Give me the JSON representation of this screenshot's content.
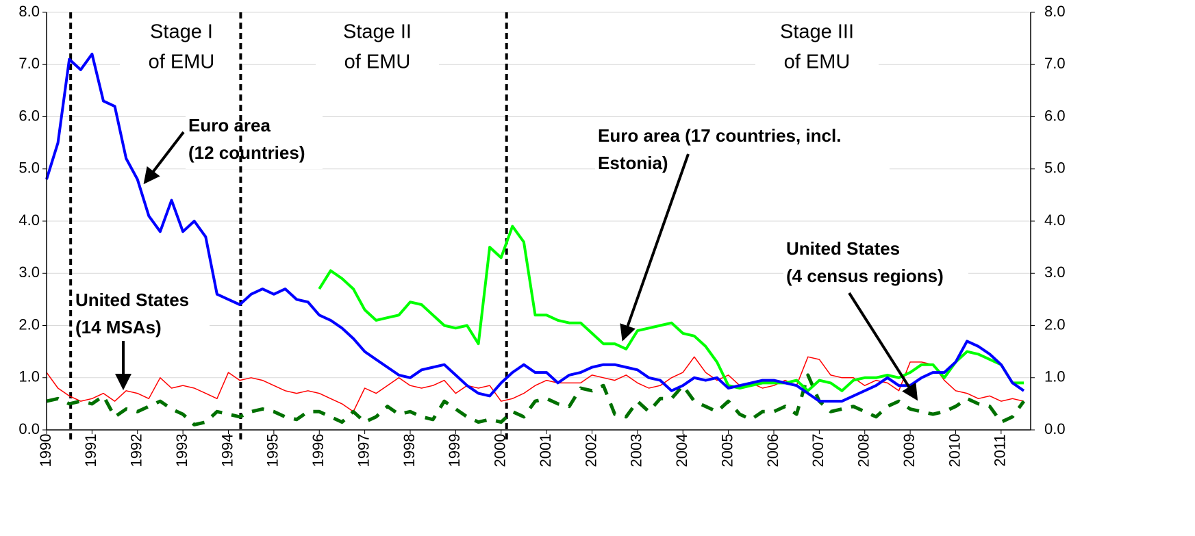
{
  "chart_data": {
    "type": "line",
    "x": [
      1990,
      1990.25,
      1990.5,
      1990.75,
      1991,
      1991.25,
      1991.5,
      1991.75,
      1992,
      1992.25,
      1992.5,
      1992.75,
      1993,
      1993.25,
      1993.5,
      1993.75,
      1994,
      1994.25,
      1994.5,
      1994.75,
      1995,
      1995.25,
      1995.5,
      1995.75,
      1996,
      1996.25,
      1996.5,
      1996.75,
      1997,
      1997.25,
      1997.5,
      1997.75,
      1998,
      1998.25,
      1998.5,
      1998.75,
      1999,
      1999.25,
      1999.5,
      1999.75,
      2000,
      2000.25,
      2000.5,
      2000.75,
      2001,
      2001.25,
      2001.5,
      2001.75,
      2002,
      2002.25,
      2002.5,
      2002.75,
      2003,
      2003.25,
      2003.5,
      2003.75,
      2004,
      2004.25,
      2004.5,
      2004.75,
      2005,
      2005.25,
      2005.5,
      2005.75,
      2006,
      2006.25,
      2006.5,
      2006.75,
      2007,
      2007.25,
      2007.5,
      2007.75,
      2008,
      2008.25,
      2008.5,
      2008.75,
      2009,
      2009.25,
      2009.5,
      2009.75,
      2010,
      2010.25,
      2010.5,
      2010.75,
      2011,
      2011.25,
      2011.5
    ],
    "series": [
      {
        "color": "#ff0000",
        "width": 1.5,
        "values": [
          1.1,
          0.8,
          0.65,
          0.55,
          0.6,
          0.7,
          0.55,
          0.75,
          0.7,
          0.6,
          1.0,
          0.8,
          0.85,
          0.8,
          0.7,
          0.6,
          1.1,
          0.95,
          1.0,
          0.95,
          0.85,
          0.75,
          0.7,
          0.75,
          0.7,
          0.6,
          0.5,
          0.35,
          0.8,
          0.7,
          0.85,
          1.0,
          0.85,
          0.8,
          0.85,
          0.95,
          0.7,
          0.85,
          0.8,
          0.85,
          0.55,
          0.6,
          0.7,
          0.85,
          0.95,
          0.9,
          0.9,
          0.9,
          1.05,
          1.0,
          0.95,
          1.05,
          0.9,
          0.8,
          0.85,
          1.0,
          1.1,
          1.4,
          1.1,
          0.95,
          1.05,
          0.85,
          0.9,
          0.8,
          0.85,
          0.95,
          0.85,
          1.4,
          1.35,
          1.05,
          1.0,
          1.0,
          0.85,
          0.95,
          0.9,
          0.75,
          1.3,
          1.3,
          1.25,
          0.95,
          0.75,
          0.7,
          0.6,
          0.65,
          0.55,
          0.6,
          0.55
        ]
      },
      {
        "color": "#007000",
        "width": 5,
        "dashed": true,
        "values": [
          0.55,
          0.6,
          0.5,
          0.55,
          0.5,
          0.65,
          0.25,
          0.4,
          0.35,
          0.45,
          0.55,
          0.4,
          0.3,
          0.1,
          0.15,
          0.35,
          0.3,
          0.25,
          0.35,
          0.4,
          0.35,
          0.25,
          0.2,
          0.35,
          0.35,
          0.25,
          0.15,
          0.35,
          0.15,
          0.25,
          0.45,
          0.3,
          0.35,
          0.25,
          0.2,
          0.55,
          0.4,
          0.25,
          0.15,
          0.2,
          0.15,
          0.35,
          0.25,
          0.55,
          0.6,
          0.5,
          0.45,
          0.8,
          0.75,
          0.85,
          0.3,
          0.25,
          0.55,
          0.35,
          0.6,
          0.6,
          0.85,
          0.55,
          0.45,
          0.35,
          0.55,
          0.3,
          0.2,
          0.35,
          0.35,
          0.45,
          0.3,
          1.05,
          0.55,
          0.35,
          0.4,
          0.45,
          0.35,
          0.25,
          0.45,
          0.55,
          0.4,
          0.35,
          0.3,
          0.35,
          0.45,
          0.6,
          0.5,
          0.45,
          0.15,
          0.25,
          0.55
        ]
      },
      {
        "color": "#00ff00",
        "width": 4,
        "values": [
          null,
          null,
          null,
          null,
          null,
          null,
          null,
          null,
          null,
          null,
          null,
          null,
          null,
          null,
          null,
          null,
          null,
          null,
          null,
          null,
          null,
          null,
          null,
          null,
          2.7,
          3.05,
          2.9,
          2.7,
          2.3,
          2.1,
          2.15,
          2.2,
          2.45,
          2.4,
          2.2,
          2.0,
          1.95,
          2.0,
          1.65,
          3.5,
          3.3,
          3.9,
          3.6,
          2.2,
          2.2,
          2.1,
          2.05,
          2.05,
          1.85,
          1.65,
          1.65,
          1.55,
          1.9,
          1.95,
          2.0,
          2.05,
          1.85,
          1.8,
          1.6,
          1.3,
          0.85,
          0.8,
          0.85,
          0.9,
          0.9,
          0.9,
          0.95,
          0.75,
          0.95,
          0.9,
          0.75,
          0.95,
          1.0,
          1.0,
          1.05,
          1.0,
          1.1,
          1.25,
          1.25,
          1.0,
          1.3,
          1.5,
          1.45,
          1.35,
          1.25,
          0.9,
          0.9
        ]
      },
      {
        "color": "#0000ff",
        "width": 4,
        "values": [
          4.8,
          5.5,
          7.1,
          6.9,
          7.2,
          6.3,
          6.2,
          5.2,
          4.8,
          4.1,
          3.8,
          4.4,
          3.8,
          4.0,
          3.7,
          2.6,
          2.5,
          2.4,
          2.6,
          2.7,
          2.6,
          2.7,
          2.5,
          2.45,
          2.2,
          2.1,
          1.95,
          1.75,
          1.5,
          1.35,
          1.2,
          1.05,
          1.0,
          1.15,
          1.2,
          1.25,
          1.05,
          0.85,
          0.7,
          0.65,
          0.9,
          1.1,
          1.25,
          1.1,
          1.1,
          0.9,
          1.05,
          1.1,
          1.2,
          1.25,
          1.25,
          1.2,
          1.15,
          1.0,
          0.95,
          0.75,
          0.85,
          1.0,
          0.95,
          1.0,
          0.8,
          0.85,
          0.9,
          0.95,
          0.95,
          0.9,
          0.85,
          0.7,
          0.55,
          0.55,
          0.55,
          0.65,
          0.75,
          0.85,
          1.0,
          0.85,
          0.85,
          1.0,
          1.1,
          1.1,
          1.3,
          1.7,
          1.6,
          1.45,
          1.25,
          0.9,
          0.75
        ]
      }
    ],
    "xlim": [
      1990,
      2011.65
    ],
    "xticks": [
      1990,
      1991,
      1992,
      1993,
      1994,
      1995,
      1996,
      1997,
      1998,
      1999,
      2000,
      2001,
      2002,
      2003,
      2004,
      2005,
      2006,
      2007,
      2008,
      2009,
      2010,
      2011
    ],
    "ylim": [
      0,
      8
    ],
    "yticks": [
      {
        "value": 0,
        "label": "0.0"
      },
      {
        "value": 1,
        "label": "1.0"
      },
      {
        "value": 2,
        "label": "2.0"
      },
      {
        "value": 3,
        "label": "3.0"
      },
      {
        "value": 4,
        "label": "4.0"
      },
      {
        "value": 5,
        "label": "5.0"
      },
      {
        "value": 6,
        "label": "6.0"
      },
      {
        "value": 7,
        "label": "7.0"
      },
      {
        "value": 8,
        "label": "8.0"
      }
    ],
    "y2lim": [
      0,
      8
    ],
    "y2ticks": [
      {
        "value": 0,
        "label": "0.0"
      },
      {
        "value": 1,
        "label": "1.0"
      },
      {
        "value": 2,
        "label": "2.0"
      },
      {
        "value": 3,
        "label": "3.0"
      },
      {
        "value": 4,
        "label": "4.0"
      },
      {
        "value": 5,
        "label": "5.0"
      },
      {
        "value": 6,
        "label": "6.0"
      },
      {
        "value": 7,
        "label": "7.0"
      },
      {
        "value": 8,
        "label": "8.0"
      }
    ],
    "grid": true,
    "reference_lines": [
      1990.53,
      1994.27,
      2000.12
    ],
    "stages": [
      [
        "Stage I",
        "of EMU"
      ],
      [
        "Stage II",
        "of EMU"
      ],
      [
        "Stage III",
        "of EMU"
      ]
    ],
    "annotations": [
      {
        "text": [
          "Euro area",
          "(12 countries)"
        ]
      },
      {
        "text": [
          "Euro area (17 countries, incl.",
          "Estonia)"
        ]
      },
      {
        "text": [
          "United States",
          "(14 MSAs)"
        ]
      },
      {
        "text": [
          "United States",
          "(4 census regions)"
        ]
      }
    ]
  }
}
